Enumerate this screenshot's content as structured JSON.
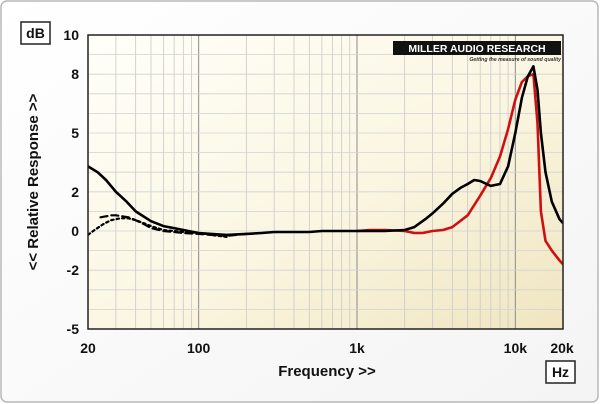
{
  "chart_data": {
    "type": "line",
    "xlabel": "Frequency >>",
    "ylabel": "<< Relative Response >>",
    "y_unit": "dB",
    "x_unit": "Hz",
    "x_scale": "log",
    "xlim": [
      20,
      20000
    ],
    "ylim": [
      -5,
      10
    ],
    "grid": true,
    "x_ticks": [
      {
        "value": 20,
        "label": "20"
      },
      {
        "value": 100,
        "label": "100"
      },
      {
        "value": 1000,
        "label": "1k"
      },
      {
        "value": 10000,
        "label": "10k"
      },
      {
        "value": 20000,
        "label": "20k"
      }
    ],
    "y_ticks": [
      {
        "value": 10,
        "label": "10"
      },
      {
        "value": 8,
        "label": "8"
      },
      {
        "value": 5,
        "label": "5"
      },
      {
        "value": 2,
        "label": "2"
      },
      {
        "value": 0,
        "label": "0"
      },
      {
        "value": -2,
        "label": "-2"
      },
      {
        "value": -5,
        "label": "-5"
      }
    ],
    "series": [
      {
        "color": "#d01010",
        "style": "solid",
        "x": [
          1000,
          1200,
          1500,
          2000,
          2300,
          2600,
          3000,
          3500,
          4000,
          5000,
          6000,
          7000,
          8000,
          9000,
          10000,
          11000,
          12000,
          13000,
          13800,
          14500,
          15500,
          17000,
          19000,
          20000
        ],
        "y": [
          0,
          0.05,
          0.05,
          0,
          -0.1,
          -0.1,
          0,
          0.05,
          0.2,
          0.8,
          1.8,
          2.7,
          3.8,
          5.2,
          6.7,
          7.6,
          7.9,
          8.0,
          5.5,
          1.0,
          -0.5,
          -1.0,
          -1.5,
          -1.7
        ]
      },
      {
        "color": "#000000",
        "style": "solid",
        "x": [
          20,
          23,
          26,
          30,
          35,
          40,
          50,
          60,
          70,
          80,
          100,
          120,
          150,
          200,
          250,
          300,
          350,
          400,
          500,
          600,
          800,
          1000,
          1500,
          2000,
          2300,
          2700,
          3000,
          3500,
          4000,
          4500,
          5000,
          5500,
          6000,
          7000,
          8000,
          9000,
          10000,
          11000,
          12000,
          13000,
          13800,
          14500,
          15500,
          17000,
          19000,
          20000
        ],
        "y": [
          3.3,
          3.0,
          2.6,
          2.0,
          1.5,
          1.0,
          0.5,
          0.25,
          0.15,
          0.05,
          -0.1,
          -0.15,
          -0.2,
          -0.15,
          -0.1,
          -0.05,
          -0.05,
          -0.05,
          -0.05,
          0,
          0,
          0,
          0,
          0.05,
          0.2,
          0.6,
          0.9,
          1.4,
          1.9,
          2.2,
          2.4,
          2.6,
          2.55,
          2.3,
          2.4,
          3.3,
          5.0,
          6.8,
          7.9,
          8.4,
          7.2,
          5.0,
          3.0,
          1.5,
          0.6,
          0.4
        ]
      },
      {
        "color": "#000000",
        "style": "dashed",
        "x": [
          24,
          26,
          28,
          30,
          33,
          36,
          40,
          45,
          50,
          60,
          70,
          80,
          100,
          120,
          150,
          200
        ],
        "y": [
          0.7,
          0.75,
          0.8,
          0.8,
          0.75,
          0.7,
          0.55,
          0.35,
          0.15,
          0,
          -0.05,
          -0.1,
          -0.15,
          -0.2,
          -0.25,
          -0.15
        ]
      },
      {
        "color": "#000000",
        "style": "dotted",
        "x": [
          20,
          22,
          25,
          28,
          32,
          36,
          40,
          45,
          50,
          60,
          70,
          80,
          100,
          120,
          150
        ],
        "y": [
          -0.2,
          0.05,
          0.35,
          0.55,
          0.65,
          0.65,
          0.55,
          0.4,
          0.25,
          0.05,
          0,
          -0.05,
          -0.1,
          -0.2,
          -0.3
        ]
      }
    ]
  },
  "logo": {
    "text": "MILLER AUDIO RESEARCH",
    "tagline": "Getting the measure of sound quality"
  }
}
